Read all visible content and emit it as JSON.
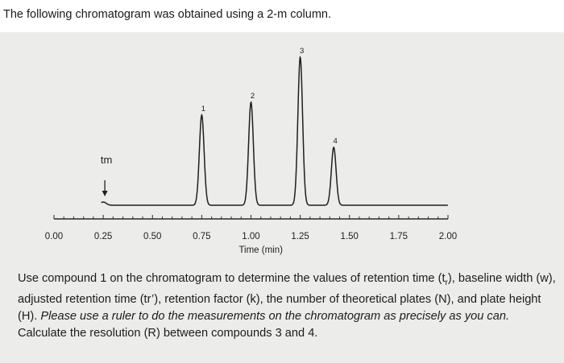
{
  "header": {
    "text": "The following chromatogram was obtained using a 2-m column."
  },
  "chart_data": {
    "type": "line",
    "title": "",
    "xlabel": "Time (min)",
    "ylabel": "",
    "xlim": [
      0,
      2.0
    ],
    "ylim": [
      0,
      1.0
    ],
    "x_ticks": [
      "0.00",
      "0.25",
      "0.50",
      "0.75",
      "1.00",
      "1.25",
      "1.50",
      "1.75",
      "2.00"
    ],
    "grid": false,
    "dead_time_marker": {
      "label": "tm",
      "x": 0.25
    },
    "peaks": [
      {
        "label": "1",
        "x": 0.75,
        "height": 0.56
      },
      {
        "label": "2",
        "x": 1.0,
        "height": 0.64
      },
      {
        "label": "3",
        "x": 1.25,
        "height": 0.92
      },
      {
        "label": "4",
        "x": 1.42,
        "height": 0.36
      }
    ],
    "dead_time_bump_height": 0.02
  },
  "instructions": {
    "para1_a": "Use compound 1 on the chromatogram to determine the values of retention time (t",
    "para1_sub": "r",
    "para1_b": "), baseline width (w), adjusted retention time (tr’), retention factor (k), the number of theoretical plates (N), and plate height (H). ",
    "para1_italic": "Please use a ruler to do the measurements on the chromatogram as precisely as you can.",
    "para2": "Calculate the resolution (R) between compounds 3 and 4."
  }
}
